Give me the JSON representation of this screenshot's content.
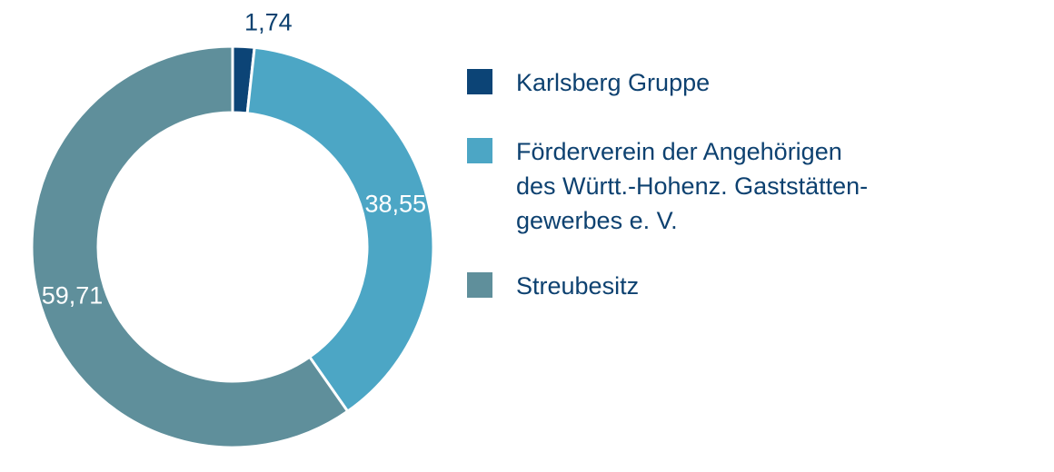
{
  "chart_data": {
    "type": "pie",
    "style": "donut",
    "title": "",
    "values": [
      1.74,
      38.55,
      59.71
    ],
    "value_labels": [
      "1,74",
      "38,55",
      "59,71"
    ],
    "series": [
      {
        "name": "Karlsberg Gruppe",
        "value": 1.74,
        "color": "#0c4476"
      },
      {
        "name": "Förderverein der Angehörigen\ndes Württ.-Hohenz. Gaststätten-\ngewerbes e. V.",
        "value": 38.55,
        "color": "#4ca6c5"
      },
      {
        "name": "Streubesitz",
        "value": 59.71,
        "color": "#5f8f9b"
      }
    ],
    "start_angle": "top",
    "direction": "clockwise",
    "legend_position": "right",
    "label_colors": {
      "outside": "#0d4170",
      "inside": "#ffffff"
    }
  }
}
